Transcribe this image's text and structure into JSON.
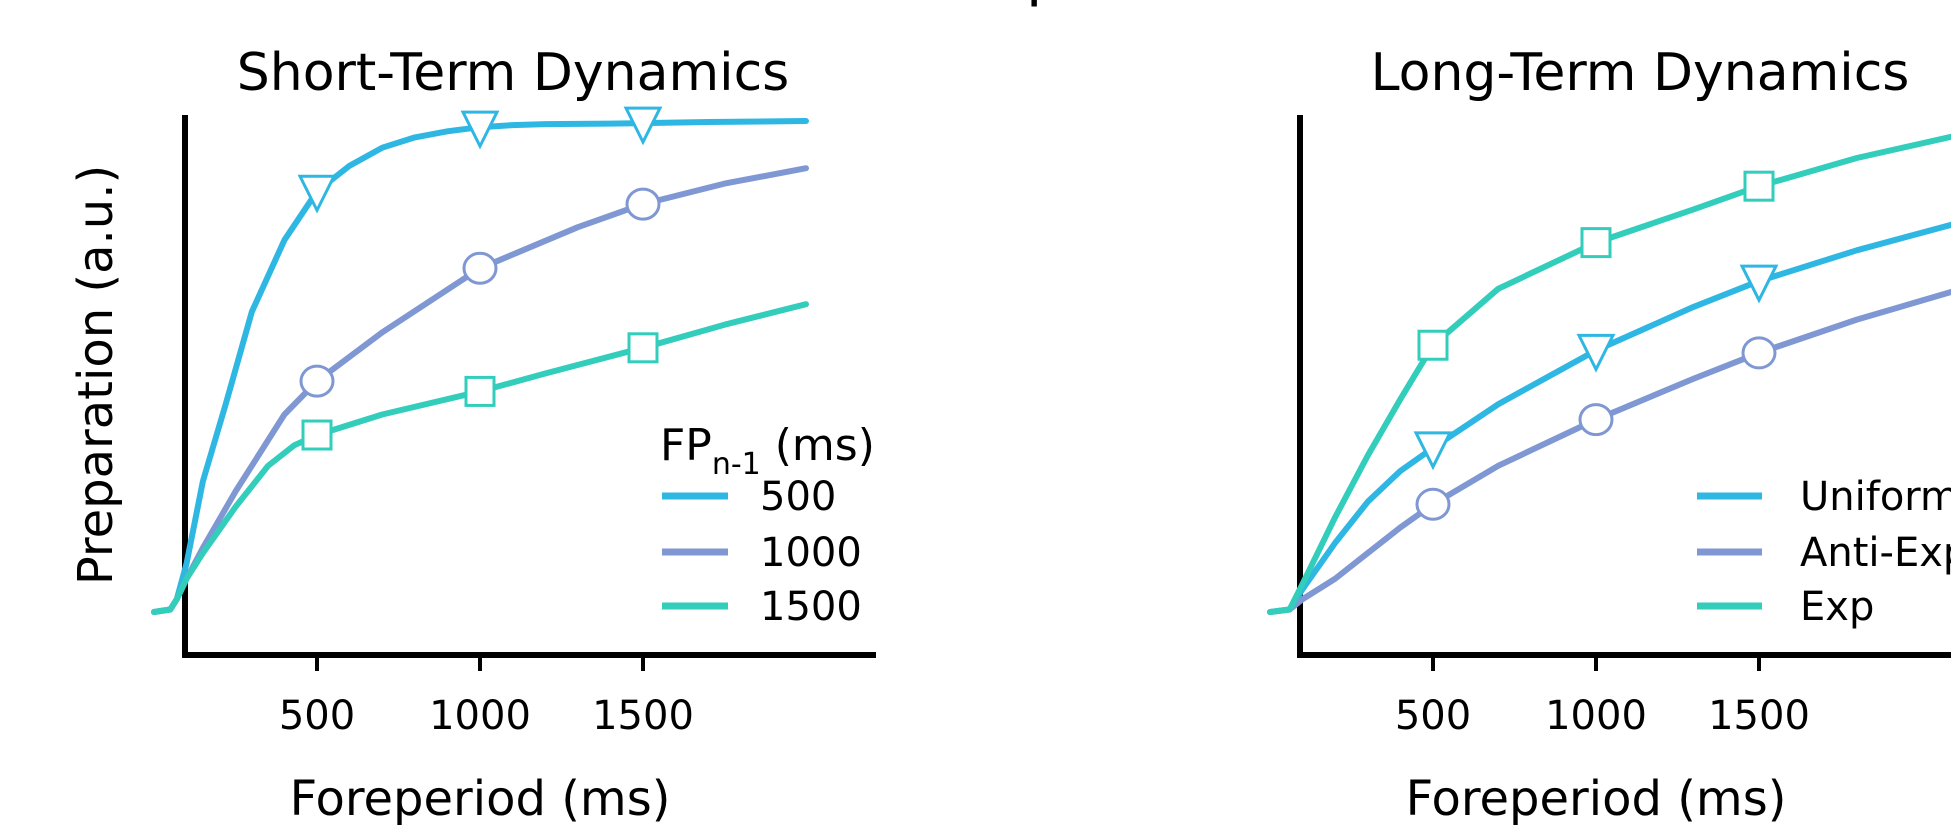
{
  "figure_title": "p",
  "chart_data": [
    {
      "type": "line",
      "title": "Short-Term Dynamics",
      "xlabel": "Foreperiod (ms)",
      "ylabel": "Preparation (a.u.)",
      "xlim": [
        0,
        2150
      ],
      "ylim": [
        0,
        1
      ],
      "xticks": [
        500,
        1000,
        1500
      ],
      "yticks_shown": false,
      "grid": false,
      "legend": {
        "title_main": "FP",
        "title_sub": "n-1",
        "title_unit": " (ms)",
        "placement": "lower-right"
      },
      "marker_x": [
        500,
        1000,
        1500
      ],
      "series": [
        {
          "name": "500",
          "color": "#2fb7e3",
          "marker": "triangle-down",
          "x": [
            0,
            50,
            70,
            100,
            150,
            220,
            300,
            400,
            500,
            600,
            700,
            800,
            900,
            1000,
            1100,
            1200,
            1400,
            1500,
            1700,
            2000
          ],
          "y": [
            0.035,
            0.04,
            0.06,
            0.13,
            0.29,
            0.44,
            0.62,
            0.76,
            0.855,
            0.905,
            0.94,
            0.96,
            0.972,
            0.98,
            0.984,
            0.986,
            0.987,
            0.988,
            0.99,
            0.992
          ]
        },
        {
          "name": "1000",
          "color": "#7f97d2",
          "marker": "circle",
          "x": [
            0,
            50,
            70,
            100,
            150,
            250,
            400,
            500,
            700,
            1000,
            1300,
            1500,
            1750,
            2000
          ],
          "y": [
            0.035,
            0.04,
            0.06,
            0.1,
            0.16,
            0.27,
            0.42,
            0.485,
            0.58,
            0.705,
            0.785,
            0.83,
            0.87,
            0.9
          ]
        },
        {
          "name": "1500",
          "color": "#33cdbc",
          "marker": "square",
          "x": [
            0,
            50,
            70,
            100,
            150,
            250,
            350,
            430,
            500,
            700,
            1000,
            1200,
            1500,
            1750,
            2000
          ],
          "y": [
            0.035,
            0.04,
            0.06,
            0.1,
            0.15,
            0.24,
            0.32,
            0.36,
            0.38,
            0.42,
            0.465,
            0.5,
            0.55,
            0.595,
            0.635
          ]
        }
      ]
    },
    {
      "type": "line",
      "title": "Long-Term Dynamics",
      "xlabel": "Foreperiod (ms)",
      "ylabel": "",
      "xlim": [
        0,
        2150
      ],
      "ylim": [
        0,
        1
      ],
      "xticks": [
        500,
        1000,
        1500
      ],
      "yticks_shown": false,
      "grid": false,
      "legend": {
        "placement": "lower-right"
      },
      "marker_x": [
        500,
        1000,
        1500
      ],
      "series": [
        {
          "name": "Uniform",
          "color": "#2fb7e3",
          "marker": "triangle-down",
          "x": [
            0,
            60,
            100,
            200,
            300,
            400,
            500,
            700,
            1000,
            1300,
            1500,
            1800,
            2150
          ],
          "y": [
            0.035,
            0.04,
            0.08,
            0.17,
            0.25,
            0.31,
            0.355,
            0.44,
            0.545,
            0.63,
            0.68,
            0.74,
            0.8
          ]
        },
        {
          "name": "Anti-Exp",
          "color": "#7f97d2",
          "marker": "circle",
          "x": [
            0,
            60,
            100,
            200,
            300,
            400,
            500,
            700,
            1000,
            1300,
            1500,
            1800,
            2150
          ],
          "y": [
            0.035,
            0.04,
            0.06,
            0.1,
            0.15,
            0.2,
            0.245,
            0.32,
            0.41,
            0.49,
            0.54,
            0.605,
            0.67
          ]
        },
        {
          "name": "Exp",
          "color": "#33cdbc",
          "marker": "square",
          "x": [
            0,
            60,
            100,
            200,
            300,
            400,
            500,
            700,
            1000,
            1300,
            1500,
            1800,
            2150
          ],
          "y": [
            0.035,
            0.04,
            0.09,
            0.22,
            0.34,
            0.45,
            0.555,
            0.665,
            0.755,
            0.82,
            0.865,
            0.92,
            0.97
          ]
        }
      ]
    }
  ]
}
